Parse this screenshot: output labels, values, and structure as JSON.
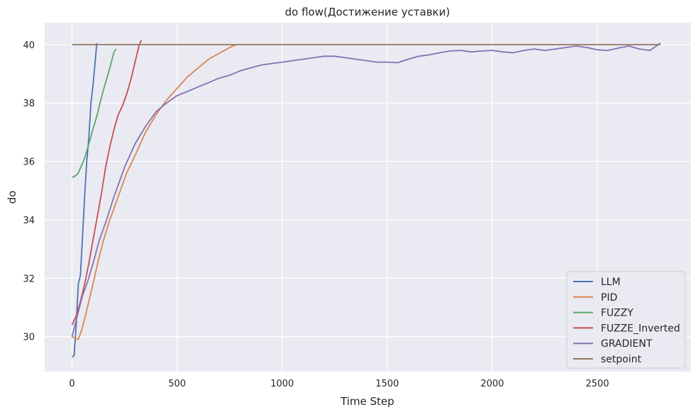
{
  "chart_data": {
    "type": "line",
    "title": "do flow(Достижение уставки)",
    "xlabel": "Time Step",
    "ylabel": "do",
    "xlim": [
      -130,
      2945
    ],
    "ylim": [
      28.8,
      40.75
    ],
    "xticks": [
      "0",
      "500",
      "1000",
      "1500",
      "2000",
      "2500"
    ],
    "yticks": [
      "30",
      "32",
      "34",
      "36",
      "38",
      "40"
    ],
    "grid": true,
    "legend_position": "lower right",
    "background": "#eaeaf2",
    "series": [
      {
        "name": "LLM",
        "color": "#4c72b0",
        "x": [
          0,
          10,
          20,
          30,
          40,
          50,
          60,
          70,
          80,
          90,
          100,
          110,
          118
        ],
        "y": [
          29.3,
          29.35,
          30.4,
          31.8,
          32.1,
          33.4,
          34.8,
          36.0,
          36.8,
          38.0,
          38.6,
          39.4,
          40.05
        ]
      },
      {
        "name": "PID",
        "color": "#dd8452",
        "x": [
          0,
          15,
          30,
          45,
          60,
          80,
          100,
          125,
          150,
          175,
          200,
          230,
          260,
          300,
          350,
          400,
          450,
          500,
          550,
          600,
          650,
          700,
          750,
          780
        ],
        "y": [
          30.0,
          29.95,
          29.9,
          30.2,
          30.6,
          31.2,
          31.8,
          32.6,
          33.3,
          33.9,
          34.4,
          35.0,
          35.6,
          36.2,
          37.0,
          37.6,
          38.1,
          38.5,
          38.9,
          39.2,
          39.5,
          39.7,
          39.9,
          40.0
        ]
      },
      {
        "name": "FUZZY",
        "color": "#55a868",
        "x": [
          0,
          15,
          30,
          45,
          60,
          80,
          100,
          120,
          140,
          160,
          180,
          200,
          210
        ],
        "y": [
          35.45,
          35.5,
          35.6,
          35.85,
          36.1,
          36.6,
          37.1,
          37.6,
          38.2,
          38.7,
          39.2,
          39.75,
          39.85
        ]
      },
      {
        "name": "FUZZE_Inverted",
        "color": "#c44e52",
        "x": [
          0,
          20,
          40,
          60,
          80,
          100,
          120,
          140,
          160,
          180,
          200,
          220,
          240,
          260,
          280,
          300,
          320,
          330
        ],
        "y": [
          30.4,
          30.7,
          31.2,
          31.8,
          32.5,
          33.3,
          34.1,
          34.9,
          35.8,
          36.5,
          37.1,
          37.6,
          37.9,
          38.3,
          38.8,
          39.4,
          40.0,
          40.15
        ]
      },
      {
        "name": "GRADIENT",
        "color": "#8172b3",
        "x": [
          0,
          25,
          50,
          75,
          100,
          130,
          160,
          200,
          250,
          300,
          350,
          400,
          450,
          500,
          550,
          600,
          650,
          700,
          750,
          800,
          850,
          900,
          950,
          1000,
          1050,
          1100,
          1150,
          1200,
          1250,
          1300,
          1350,
          1400,
          1450,
          1500,
          1550,
          1600,
          1650,
          1700,
          1750,
          1800,
          1850,
          1900,
          1950,
          2000,
          2050,
          2100,
          2150,
          2200,
          2250,
          2300,
          2350,
          2400,
          2450,
          2500,
          2550,
          2600,
          2650,
          2700,
          2750,
          2800
        ],
        "y": [
          30.0,
          30.7,
          31.4,
          31.9,
          32.5,
          33.3,
          33.9,
          34.8,
          35.8,
          36.6,
          37.2,
          37.7,
          38.0,
          38.25,
          38.4,
          38.55,
          38.7,
          38.85,
          38.95,
          39.1,
          39.2,
          39.3,
          39.35,
          39.4,
          39.45,
          39.5,
          39.55,
          39.6,
          39.6,
          39.55,
          39.5,
          39.45,
          39.4,
          39.4,
          39.38,
          39.5,
          39.6,
          39.65,
          39.72,
          39.78,
          39.8,
          39.75,
          39.78,
          39.8,
          39.75,
          39.72,
          39.8,
          39.85,
          39.8,
          39.85,
          39.9,
          39.95,
          39.9,
          39.82,
          39.8,
          39.88,
          39.95,
          39.85,
          39.8,
          40.05
        ]
      },
      {
        "name": "setpoint",
        "color": "#937860",
        "x": [
          0,
          2800
        ],
        "y": [
          40.0,
          40.0
        ]
      }
    ]
  }
}
